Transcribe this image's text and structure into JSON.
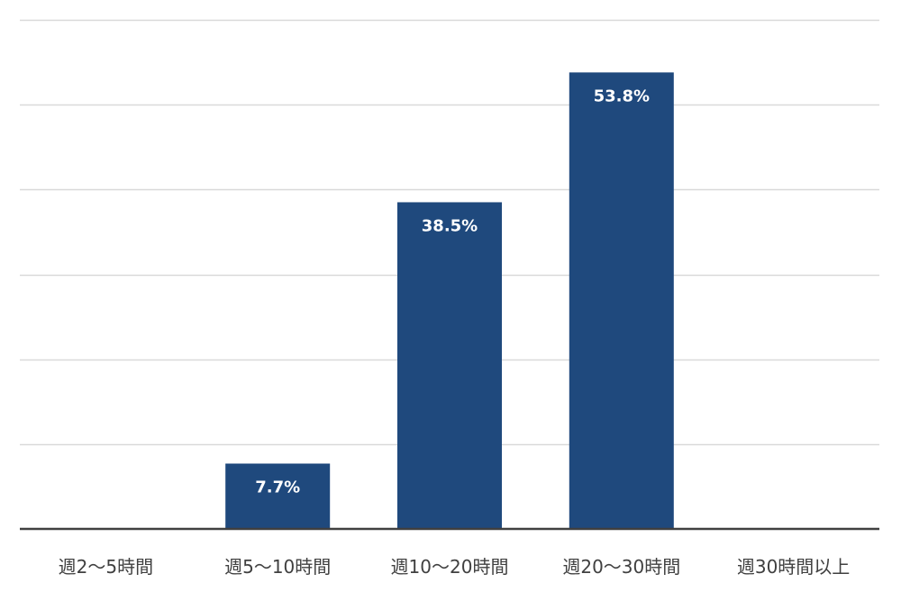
{
  "chart_data": {
    "type": "bar",
    "categories": [
      "週2～5時間",
      "週5～10時間",
      "週10～20時間",
      "週20～30時間",
      "週30時間以上"
    ],
    "values": [
      0,
      7.7,
      38.5,
      53.8,
      0
    ],
    "data_labels": [
      "",
      "7.7%",
      "38.5%",
      "53.8%",
      ""
    ],
    "ylim": [
      0,
      60
    ],
    "y_gridlines": [
      10,
      20,
      30,
      40,
      50,
      60
    ],
    "grid": true,
    "title": "",
    "xlabel": "",
    "ylabel": ""
  },
  "colors": {
    "bar": "#1f497d",
    "grid": "#d9d9d9",
    "axis": "#404040",
    "label": "#404040",
    "data_label": "#ffffff"
  }
}
